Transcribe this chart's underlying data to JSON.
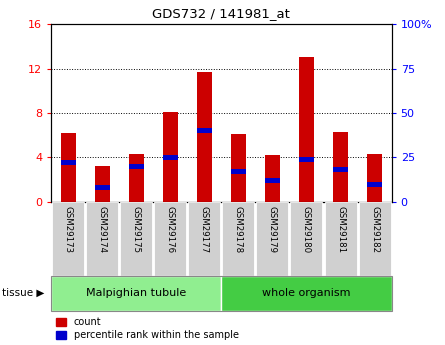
{
  "title": "GDS732 / 141981_at",
  "samples": [
    "GSM29173",
    "GSM29174",
    "GSM29175",
    "GSM29176",
    "GSM29177",
    "GSM29178",
    "GSM29179",
    "GSM29180",
    "GSM29181",
    "GSM29182"
  ],
  "count_values": [
    6.2,
    3.2,
    4.3,
    8.1,
    11.7,
    6.1,
    4.2,
    13.0,
    6.3,
    4.3
  ],
  "percentile_values": [
    22,
    8,
    20,
    25,
    40,
    17,
    12,
    24,
    18,
    10
  ],
  "groups": [
    {
      "label": "Malpighian tubule",
      "indices": [
        0,
        1,
        2,
        3,
        4
      ],
      "color": "#90EE90"
    },
    {
      "label": "whole organism",
      "indices": [
        5,
        6,
        7,
        8,
        9
      ],
      "color": "#44cc44"
    }
  ],
  "bar_color": "#cc0000",
  "blue_color": "#0000cc",
  "left_ylim": [
    0,
    16
  ],
  "right_ylim": [
    0,
    100
  ],
  "left_yticks": [
    0,
    4,
    8,
    12,
    16
  ],
  "right_yticks": [
    0,
    25,
    50,
    75,
    100
  ],
  "right_yticklabels": [
    "0",
    "25",
    "50",
    "75",
    "100%"
  ],
  "bar_width": 0.45,
  "bg_color": "#ffffff",
  "plot_bg": "#ffffff",
  "tissue_label": "tissue",
  "legend_count": "count",
  "legend_pct": "percentile rank within the sample"
}
